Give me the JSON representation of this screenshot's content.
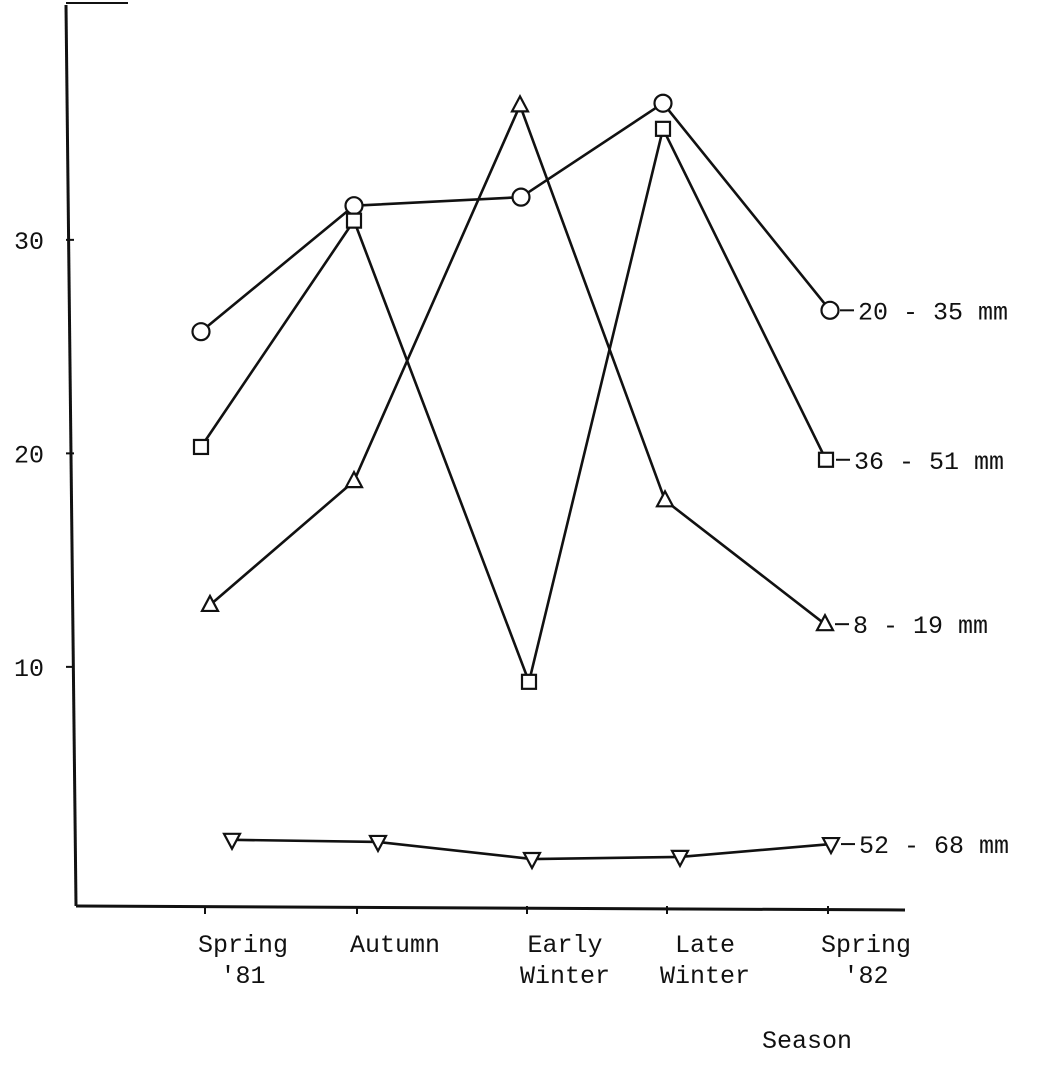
{
  "chart_data": {
    "type": "line",
    "title": "",
    "xlabel": "Season",
    "ylabel": "",
    "categories": [
      [
        "Spring",
        "'81"
      ],
      [
        "Autumn"
      ],
      [
        "Early",
        "Winter"
      ],
      [
        "Late",
        "Winter"
      ],
      [
        "Spring",
        "'82"
      ]
    ],
    "yticks": [
      "10",
      "20",
      "30"
    ],
    "ylim": [
      -1.2,
      41
    ],
    "grid": false,
    "legend": "direct labels at right end of each line",
    "series": [
      {
        "name": "20 - 35 mm",
        "marker": "circle",
        "values": [
          25.7,
          31.6,
          32.0,
          36.4,
          26.7
        ]
      },
      {
        "name": "36 - 51 mm",
        "marker": "square",
        "values": [
          20.3,
          30.9,
          9.3,
          35.2,
          19.7
        ]
      },
      {
        "name": "8 - 19 mm",
        "marker": "triangle-up",
        "values": [
          12.9,
          18.7,
          36.3,
          17.8,
          12.0
        ]
      },
      {
        "name": "52 - 68 mm",
        "marker": "triangle-down",
        "values": [
          1.9,
          1.8,
          1.0,
          1.1,
          1.7
        ]
      }
    ]
  }
}
